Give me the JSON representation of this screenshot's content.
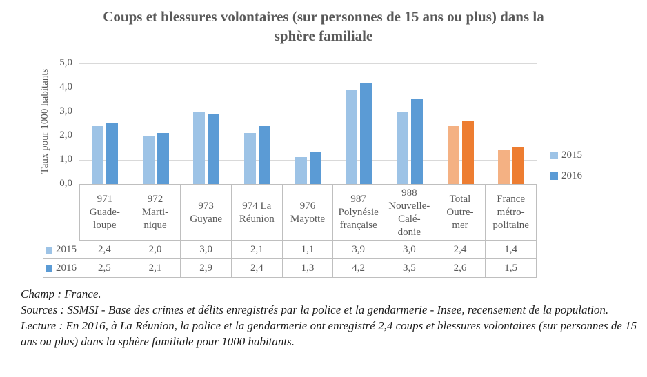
{
  "chart_data": {
    "type": "bar",
    "title": "Coups et blessures volontaires (sur personnes de 15 ans ou plus) dans la sphère familiale",
    "ylabel": "Taux pour 1000 habitants",
    "xlabel": "",
    "ylim": [
      0,
      5
    ],
    "yticks": [
      0,
      1,
      2,
      3,
      4,
      5
    ],
    "ytick_labels": [
      "0,0",
      "1,0",
      "2,0",
      "3,0",
      "4,0",
      "5,0"
    ],
    "grid": true,
    "legend_position": "right",
    "data_table_shown": true,
    "categories": [
      {
        "label": "971 Guadeloupe",
        "lines": [
          "971",
          "Guade-",
          "loupe"
        ]
      },
      {
        "label": "972 Martinique",
        "lines": [
          "972",
          "Marti-",
          "nique"
        ]
      },
      {
        "label": "973 Guyane",
        "lines": [
          "973",
          "Guyane"
        ]
      },
      {
        "label": "974 La Réunion",
        "lines": [
          "974 La",
          "Réunion"
        ]
      },
      {
        "label": "976 Mayotte",
        "lines": [
          "976",
          "Mayotte"
        ]
      },
      {
        "label": "987 Polynésie française",
        "lines": [
          "987",
          "Polynésie",
          "française"
        ]
      },
      {
        "label": "988 Nouvelle-Calédonie",
        "lines": [
          "988",
          "Nouvelle-",
          "Calé-",
          "donie"
        ]
      },
      {
        "label": "Total Outre-mer",
        "lines": [
          "Total",
          "Outre-",
          "mer"
        ]
      },
      {
        "label": "France métropolitaine",
        "lines": [
          "France",
          "métro-",
          "politaine"
        ]
      }
    ],
    "series": [
      {
        "name": "2015",
        "values": [
          2.4,
          2.0,
          3.0,
          2.1,
          1.1,
          3.9,
          3.0,
          2.4,
          1.4
        ],
        "values_display": [
          "2,4",
          "2,0",
          "3,0",
          "2,1",
          "1,1",
          "3,9",
          "3,0",
          "2,4",
          "1,4"
        ],
        "color": "#9DC3E6",
        "color_highlight": "#F4B183"
      },
      {
        "name": "2016",
        "values": [
          2.5,
          2.1,
          2.9,
          2.4,
          1.3,
          4.2,
          3.5,
          2.6,
          1.5
        ],
        "values_display": [
          "2,5",
          "2,1",
          "2,9",
          "2,4",
          "1,3",
          "4,2",
          "3,5",
          "2,6",
          "1,5"
        ],
        "color": "#5B9BD5",
        "color_highlight": "#ED7D31"
      }
    ],
    "highlight": {
      "note": "orange bars",
      "categories": [
        "Total Outre-mer",
        "France métropolitaine"
      ],
      "indices": [
        7,
        8
      ]
    }
  },
  "notes": {
    "champ": "Champ : France.",
    "sources": "Sources  : SSMSI - Base des crimes et délits enregistrés par la police et la gendarmerie - Insee, recensement de la population.",
    "lecture": "Lecture : En 2016, à La Réunion, la police et la gendarmerie ont enregistré 2,4 coups et blessures volontaires (sur personnes de 15 ans ou plus) dans la sphère familiale pour 1000 habitants."
  },
  "colors": {
    "series_2015_blue": "#9DC3E6",
    "series_2016_blue": "#5B9BD5",
    "series_2015_orange": "#F4B183",
    "series_2016_orange": "#ED7D31",
    "gridline": "#D9D9D9",
    "axis_and_table_border": "#BFBFBF",
    "text_gray": "#595959"
  }
}
